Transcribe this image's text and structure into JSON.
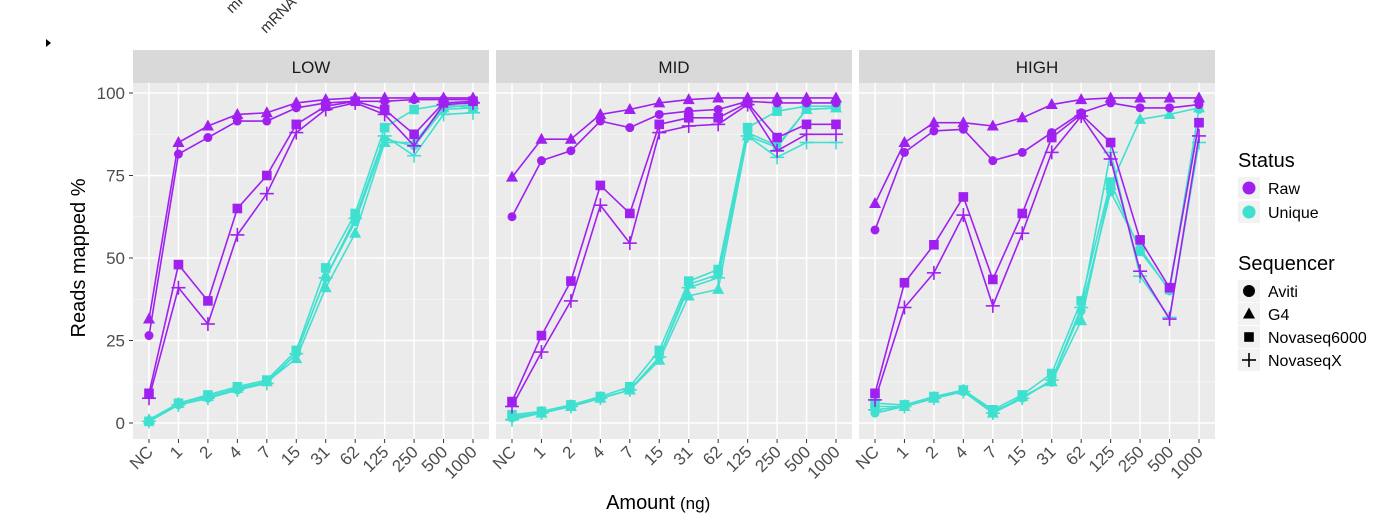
{
  "top_fragments": [
    "mRNA",
    "mRNA"
  ],
  "chart_data": {
    "type": "line",
    "ylabel": "Reads mapped %",
    "xlabel": "Amount",
    "xlabel_unit": "(ng)",
    "categories": [
      "NC",
      "1",
      "2",
      "4",
      "7",
      "15",
      "31",
      "62",
      "125",
      "250",
      "500",
      "1000"
    ],
    "ylim": [
      0,
      100
    ],
    "yticks": [
      0,
      25,
      50,
      75,
      100
    ],
    "grid": true,
    "legend_position": "right",
    "colors": {
      "Raw": "#a020f0",
      "Unique": "#40e0d0"
    },
    "legend": {
      "status_title": "Status",
      "status": [
        {
          "label": "Raw",
          "color": "#a020f0"
        },
        {
          "label": "Unique",
          "color": "#40e0d0"
        }
      ],
      "sequencer_title": "Sequencer",
      "sequencer": [
        {
          "label": "Aviti",
          "shape": "circle"
        },
        {
          "label": "G4",
          "shape": "triangle"
        },
        {
          "label": "Novaseq6000",
          "shape": "square"
        },
        {
          "label": "NovaseqX",
          "shape": "plus"
        }
      ]
    },
    "panels": [
      {
        "label": "LOW",
        "series": [
          {
            "status": "Raw",
            "sequencer": "Aviti",
            "values": [
              26.5,
              81.5,
              86.5,
              91.5,
              91.5,
              95.5,
              97,
              97.5,
              97.5,
              98,
              98,
              98
            ]
          },
          {
            "status": "Raw",
            "sequencer": "G4",
            "values": [
              31.5,
              85,
              90,
              93.5,
              94,
              97,
              98,
              98.5,
              98.5,
              98.5,
              98.5,
              98.5
            ]
          },
          {
            "status": "Raw",
            "sequencer": "Novaseq6000",
            "values": [
              9,
              48,
              37,
              65,
              75,
              90.5,
              96,
              97.5,
              95,
              87.5,
              97,
              97.5
            ]
          },
          {
            "status": "Raw",
            "sequencer": "NovaseqX",
            "values": [
              7.5,
              41,
              30,
              57,
              69.5,
              88,
              95,
              97,
              93.5,
              84,
              96.5,
              97
            ]
          },
          {
            "status": "Unique",
            "sequencer": "Aviti",
            "values": [
              0.5,
              5.5,
              7.5,
              10,
              12.5,
              21,
              44,
              61,
              86,
              84,
              95,
              95.5
            ]
          },
          {
            "status": "Unique",
            "sequencer": "G4",
            "values": [
              1,
              6,
              8,
              10.5,
              12.5,
              19.5,
              41,
              57.5,
              85,
              85,
              95.5,
              96.5
            ]
          },
          {
            "status": "Unique",
            "sequencer": "Novaseq6000",
            "values": [
              0.5,
              6,
              8.5,
              11,
              13,
              22,
              47,
              63.5,
              89.5,
              95,
              96.5,
              95.5
            ]
          },
          {
            "status": "Unique",
            "sequencer": "NovaseqX",
            "values": [
              0.5,
              5.5,
              7.5,
              10,
              12,
              21,
              44,
              62,
              87,
              81,
              93.5,
              94
            ]
          }
        ]
      },
      {
        "label": "MID",
        "series": [
          {
            "status": "Raw",
            "sequencer": "Aviti",
            "values": [
              62.5,
              79.5,
              82.5,
              91.5,
              89.5,
              93.5,
              94.5,
              95,
              97.5,
              97,
              97,
              97
            ]
          },
          {
            "status": "Raw",
            "sequencer": "G4",
            "values": [
              74.5,
              86,
              86,
              93.5,
              95,
              97,
              98,
              98.5,
              98.5,
              98.5,
              98.5,
              98.5
            ]
          },
          {
            "status": "Raw",
            "sequencer": "Novaseq6000",
            "values": [
              6.5,
              26.5,
              43,
              72,
              63.5,
              90.5,
              92.5,
              92.5,
              97,
              86.5,
              90.5,
              90.5
            ]
          },
          {
            "status": "Raw",
            "sequencer": "NovaseqX",
            "values": [
              5,
              21.5,
              37,
              66,
              54.5,
              88,
              90,
              90.5,
              96.5,
              82.5,
              87.5,
              87.5
            ]
          },
          {
            "status": "Unique",
            "sequencer": "Aviti",
            "values": [
              1.5,
              3,
              5,
              7.5,
              10,
              20,
              42,
              45,
              88,
              84,
              95,
              95.5
            ]
          },
          {
            "status": "Unique",
            "sequencer": "G4",
            "values": [
              2,
              3,
              5,
              7.5,
              10,
              19,
              38.5,
              40.5,
              87,
              83.5,
              95,
              95.5
            ]
          },
          {
            "status": "Unique",
            "sequencer": "Novaseq6000",
            "values": [
              2.5,
              3.5,
              5.5,
              8,
              11,
              22,
              43,
              46.5,
              89.5,
              94.5,
              96,
              96
            ]
          },
          {
            "status": "Unique",
            "sequencer": "NovaseqX",
            "values": [
              1,
              3,
              5,
              7.5,
              10,
              20,
              41,
              44,
              87,
              80.5,
              85,
              85
            ]
          }
        ]
      },
      {
        "label": "HIGH",
        "series": [
          {
            "status": "Raw",
            "sequencer": "Aviti",
            "values": [
              58.5,
              82,
              88.5,
              89,
              79.5,
              82,
              88,
              94,
              97,
              95.5,
              95.5,
              96.5
            ]
          },
          {
            "status": "Raw",
            "sequencer": "G4",
            "values": [
              66.5,
              85,
              91,
              91,
              90,
              92.5,
              96.5,
              98,
              98.5,
              98.5,
              98.5,
              98.5
            ]
          },
          {
            "status": "Raw",
            "sequencer": "Novaseq6000",
            "values": [
              9,
              42.5,
              54,
              68.5,
              43.5,
              63.5,
              86.5,
              93.5,
              85,
              55.5,
              41,
              91
            ]
          },
          {
            "status": "Raw",
            "sequencer": "NovaseqX",
            "values": [
              7,
              35,
              45.5,
              63,
              35.5,
              57.5,
              82,
              93,
              80,
              46,
              31.5,
              87
            ]
          },
          {
            "status": "Unique",
            "sequencer": "Aviti",
            "values": [
              3,
              5,
              7.5,
              9.5,
              3.5,
              7.5,
              13,
              34,
              70,
              53,
              40,
              95
            ]
          },
          {
            "status": "Unique",
            "sequencer": "G4",
            "values": [
              5,
              5,
              7.5,
              10,
              3,
              8,
              12.5,
              31,
              72,
              92,
              93.5,
              95.5
            ]
          },
          {
            "status": "Unique",
            "sequencer": "Novaseq6000",
            "values": [
              6,
              5.5,
              8,
              10,
              4,
              8.5,
              15,
              37,
              73,
              52,
              40.5,
              91
            ]
          },
          {
            "status": "Unique",
            "sequencer": "NovaseqX",
            "values": [
              4,
              5,
              7.5,
              9.5,
              3,
              7.5,
              13,
              35,
              82,
              44.5,
              32,
              85
            ]
          }
        ]
      }
    ]
  }
}
